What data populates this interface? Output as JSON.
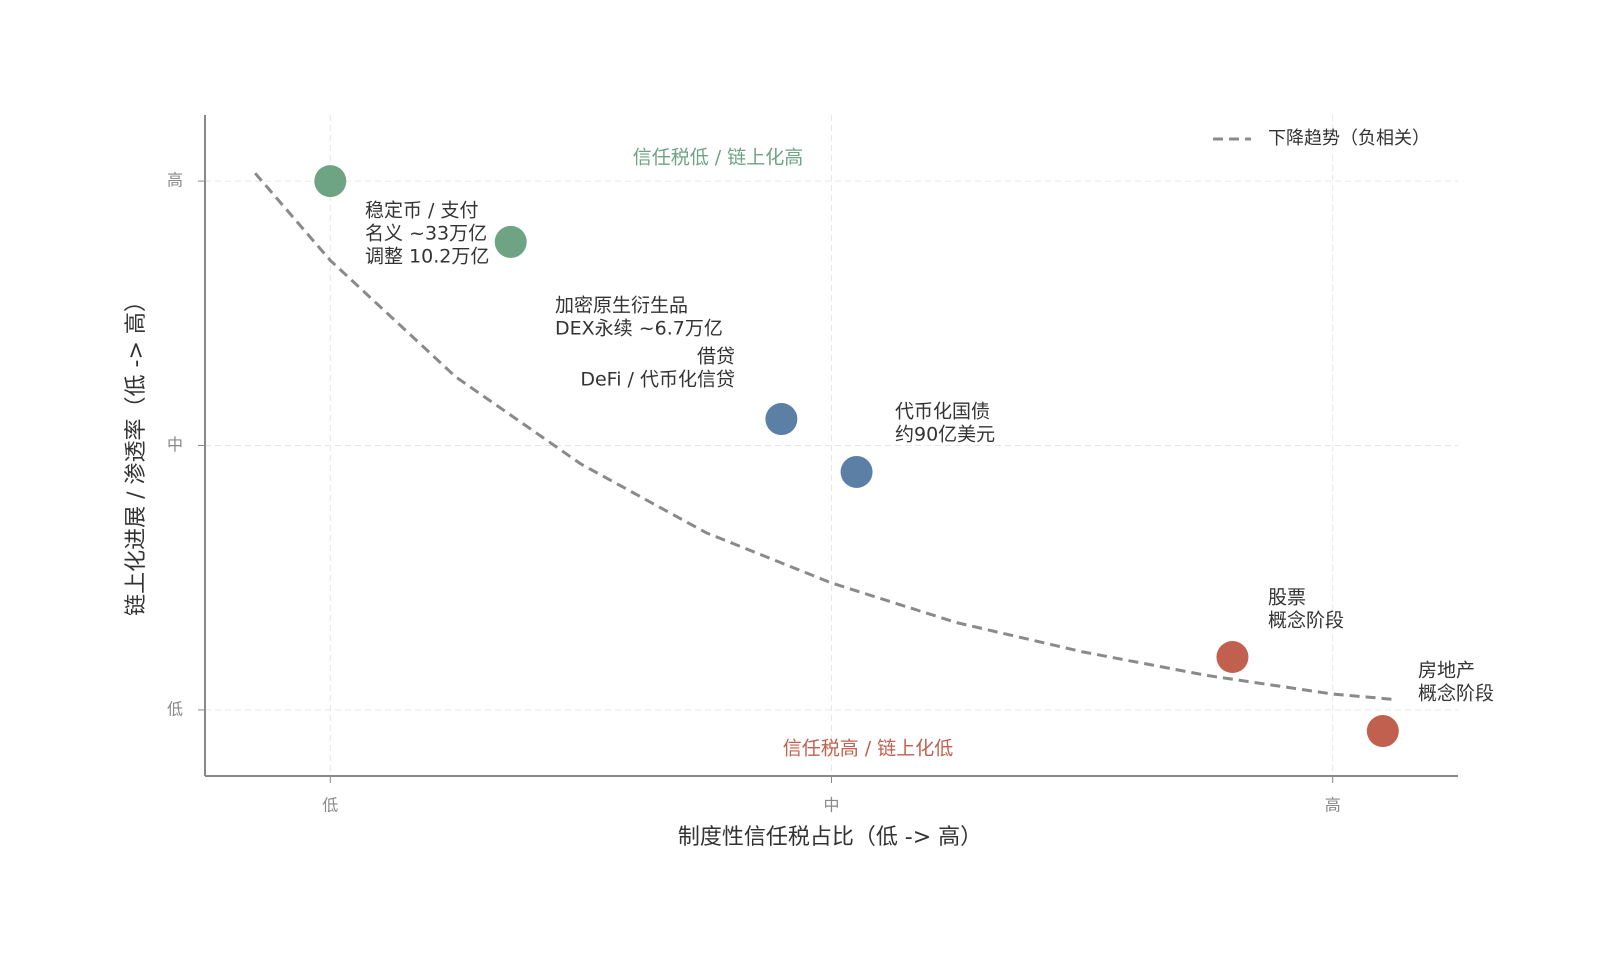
{
  "chart_data": {
    "type": "scatter",
    "xlabel": "制度性信任税占比（低 -> 高）",
    "ylabel": "链上化进展 / 渗透率（低 -> 高）",
    "xlim": [
      0.75,
      3.25
    ],
    "ylim": [
      0.75,
      3.25
    ],
    "xticks": [
      {
        "value": 1,
        "label": "低"
      },
      {
        "value": 2,
        "label": "中"
      },
      {
        "value": 3,
        "label": "高"
      }
    ],
    "yticks": [
      {
        "value": 1,
        "label": "低"
      },
      {
        "value": 2,
        "label": "中"
      },
      {
        "value": 3,
        "label": "高"
      }
    ],
    "grid": true,
    "legend": "upper right",
    "points": [
      {
        "x": 1.0,
        "y": 3.0,
        "color": "#6ea383"
      },
      {
        "x": 1.36,
        "y": 2.77,
        "color": "#6ea383"
      },
      {
        "x": 1.9,
        "y": 2.1,
        "color": "#5c7fa6"
      },
      {
        "x": 2.05,
        "y": 1.9,
        "color": "#5c7fa6"
      },
      {
        "x": 2.8,
        "y": 1.2,
        "color": "#c1604f"
      },
      {
        "x": 3.1,
        "y": 0.92,
        "color": "#c1604f"
      }
    ],
    "trend": {
      "name": "下降趋势（负相关）",
      "color": "#8a8a8a",
      "x": [
        0.85,
        1.0,
        1.25,
        1.5,
        1.75,
        2.0,
        2.25,
        2.5,
        2.75,
        3.0,
        3.12
      ],
      "y": [
        3.03,
        2.7,
        2.26,
        1.93,
        1.67,
        1.48,
        1.33,
        1.22,
        1.13,
        1.06,
        1.04
      ]
    },
    "annotations": [
      {
        "lines": [
          "稳定币 / 支付",
          "名义 ~33万亿",
          "调整 10.2万亿"
        ]
      },
      {
        "lines": [
          "加密原生衍生品",
          "DEX永续 ~6.7万亿"
        ]
      },
      {
        "lines": [
          "借贷",
          "DeFi / 代币化信贷"
        ]
      },
      {
        "lines": [
          "代币化国债",
          "约90亿美元"
        ]
      },
      {
        "lines": [
          "股票",
          "概念阶段"
        ]
      },
      {
        "lines": [
          "房地产",
          "概念阶段"
        ]
      }
    ],
    "regions": [
      {
        "text": "信任税低 / 链上化高",
        "color": "#6ea383"
      },
      {
        "text": "信任税高 / 链上化低",
        "color": "#c1604f"
      }
    ]
  }
}
